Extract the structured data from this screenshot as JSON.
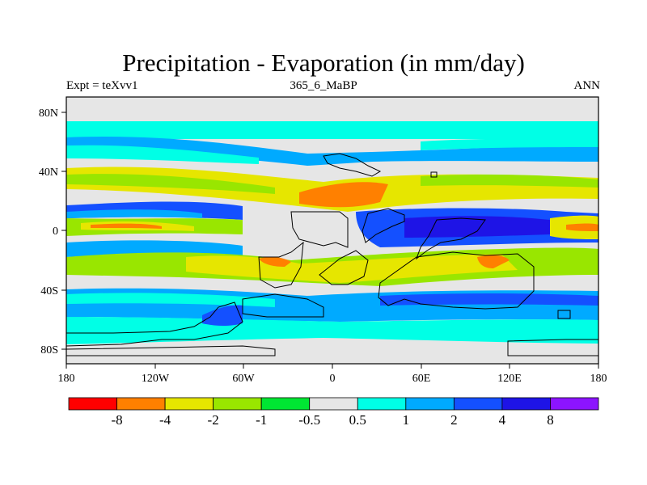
{
  "title": "Precipitation - Evaporation (in mm/day)",
  "subtitle_left": "Expt = teXvv1",
  "subtitle_center": "365_6_MaBP",
  "subtitle_right": "ANN",
  "map": {
    "x_ticks": [
      "180",
      "120W",
      "60W",
      "0",
      "60E",
      "120E",
      "180"
    ],
    "y_ticks": [
      "80N",
      "40N",
      "0",
      "40S",
      "80S"
    ],
    "lon_range": [
      -180,
      180
    ],
    "lat_range": [
      -90,
      90
    ]
  },
  "colorbar": {
    "colors": [
      "#ff0000",
      "#ff8000",
      "#e6e600",
      "#99e600",
      "#00e633",
      "#e6e6e6",
      "#00ffe6",
      "#00aaff",
      "#1450ff",
      "#1e14e6",
      "#8c14ff"
    ],
    "labels": [
      "-8",
      "-4",
      "-2",
      "-1",
      "-0.5",
      "0.5",
      "1",
      "2",
      "4",
      "8"
    ]
  }
}
